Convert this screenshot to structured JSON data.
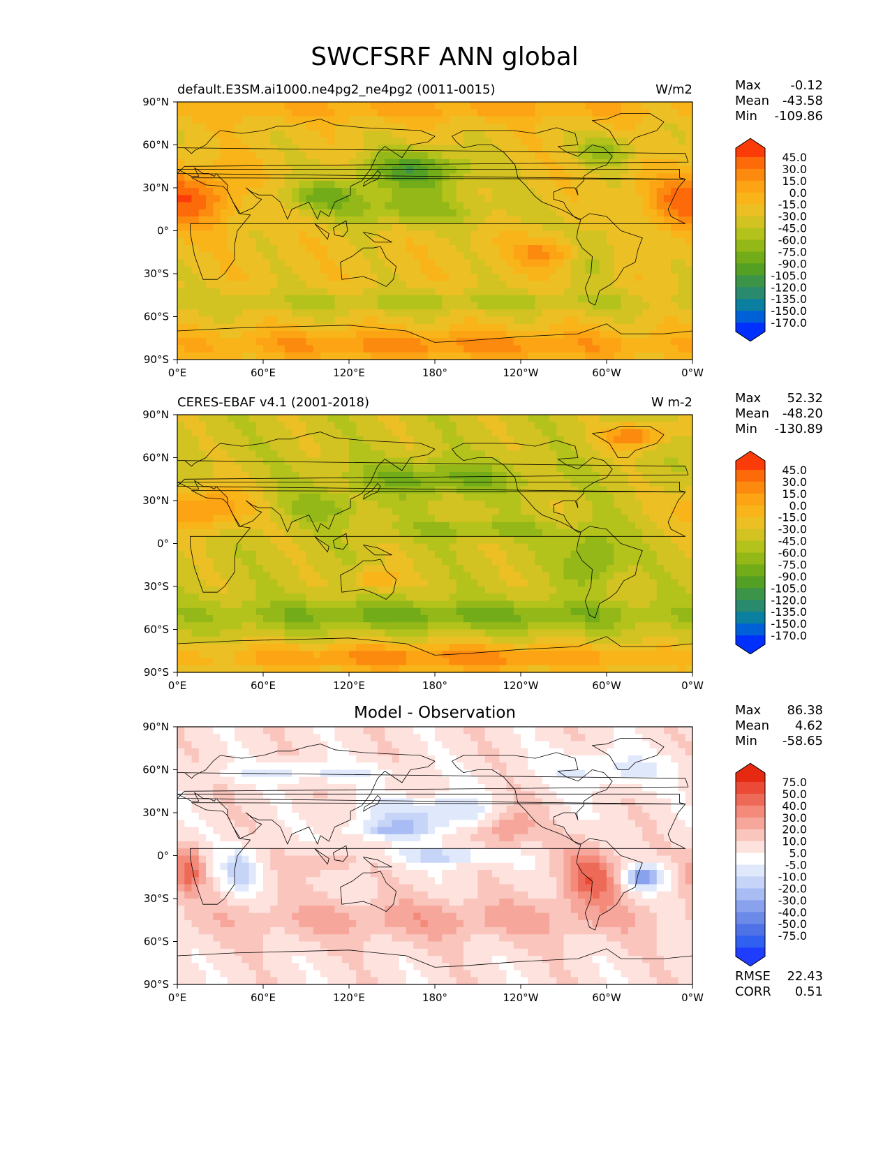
{
  "title": "SWCFSRF ANN global",
  "palettes": {
    "field": [
      "#0030ff",
      "#0060d8",
      "#0a7fa0",
      "#2a8a6e",
      "#3c9448",
      "#54a024",
      "#72ac18",
      "#94b818",
      "#b4c21c",
      "#d2c222",
      "#ecc024",
      "#f8b418",
      "#fca414",
      "#fc8a0e",
      "#fc6a0a",
      "#fc3c08"
    ],
    "diff": [
      "#1f3dff",
      "#3060f0",
      "#4f73e6",
      "#6c8ae8",
      "#8aa2ee",
      "#a9bdf4",
      "#c6d4f8",
      "#e0e8fc",
      "#ffffff",
      "#fde2de",
      "#fac5bd",
      "#f6a69a",
      "#f38a7a",
      "#ee6a58",
      "#ea4a36",
      "#e62a12"
    ]
  },
  "chart_data": [
    {
      "type": "heatmap",
      "title": "default.E3SM.ai1000.ne4pg2_ne4pg2 (0011-0015)",
      "units": "W/m2",
      "stats": {
        "labels": [
          "Max",
          "Mean",
          "Min"
        ],
        "values": [
          "-0.12",
          "-43.58",
          "-109.86"
        ]
      },
      "colorbar": {
        "palette": "field",
        "ticks": [
          "45.0",
          "30.0",
          "15.0",
          "0.0",
          "-15.0",
          "-30.0",
          "-45.0",
          "-60.0",
          "-75.0",
          "-90.0",
          "-105.0",
          "-120.0",
          "-135.0",
          "-150.0",
          "-170.0"
        ]
      },
      "xticks": [
        "0°E",
        "60°E",
        "120°E",
        "180°",
        "120°W",
        "60°W",
        "0°W"
      ],
      "yticks": [
        "90°N",
        "60°N",
        "30°N",
        "0°",
        "30°S",
        "60°S",
        "90°S"
      ],
      "xlim": [
        0,
        360
      ],
      "ylim": [
        -90,
        90
      ],
      "base_level": 10,
      "features": [
        {
          "lon": 165,
          "lat": 42,
          "rx": 40,
          "ry": 14,
          "delta": -5
        },
        {
          "lon": 100,
          "lat": 25,
          "rx": 30,
          "ry": 10,
          "delta": -3
        },
        {
          "lon": 160,
          "lat": 15,
          "rx": 60,
          "ry": 12,
          "delta": -3
        },
        {
          "lon": 180,
          "lat": -50,
          "rx": 180,
          "ry": 8,
          "delta": -2
        },
        {
          "lon": 350,
          "lat": 20,
          "rx": 25,
          "ry": 20,
          "delta": 3
        },
        {
          "lon": 20,
          "lat": 25,
          "rx": 25,
          "ry": 20,
          "delta": 3
        },
        {
          "lon": 260,
          "lat": -15,
          "rx": 25,
          "ry": 10,
          "delta": 3
        },
        {
          "lon": 180,
          "lat": 85,
          "rx": 180,
          "ry": 8,
          "delta": 2
        },
        {
          "lon": 180,
          "lat": -80,
          "rx": 180,
          "ry": 10,
          "delta": 3
        },
        {
          "lon": 300,
          "lat": 55,
          "rx": 20,
          "ry": 10,
          "delta": -3
        },
        {
          "lon": 290,
          "lat": -15,
          "rx": 20,
          "ry": 20,
          "delta": -2
        }
      ]
    },
    {
      "type": "heatmap",
      "title": "CERES-EBAF v4.1 (2001-2018)",
      "units": "W m-2",
      "stats": {
        "labels": [
          "Max",
          "Mean",
          "Min"
        ],
        "values": [
          "52.32",
          "-48.20",
          "-130.89"
        ]
      },
      "colorbar": {
        "palette": "field",
        "ticks": [
          "45.0",
          "30.0",
          "15.0",
          "0.0",
          "-15.0",
          "-30.0",
          "-45.0",
          "-60.0",
          "-75.0",
          "-90.0",
          "-105.0",
          "-120.0",
          "-135.0",
          "-150.0",
          "-170.0"
        ]
      },
      "xticks": [
        "0°E",
        "60°E",
        "120°E",
        "180°",
        "120°W",
        "60°W",
        "0°W"
      ],
      "yticks": [
        "90°N",
        "60°N",
        "30°N",
        "0°",
        "30°S",
        "60°S",
        "90°S"
      ],
      "xlim": [
        0,
        360
      ],
      "ylim": [
        -90,
        90
      ],
      "base_level": 9,
      "features": [
        {
          "lon": 180,
          "lat": 45,
          "rx": 60,
          "ry": 12,
          "delta": -3
        },
        {
          "lon": 180,
          "lat": -50,
          "rx": 180,
          "ry": 10,
          "delta": -3
        },
        {
          "lon": 290,
          "lat": -10,
          "rx": 20,
          "ry": 20,
          "delta": -3
        },
        {
          "lon": 100,
          "lat": 25,
          "rx": 30,
          "ry": 10,
          "delta": -2
        },
        {
          "lon": 320,
          "lat": 75,
          "rx": 20,
          "ry": 8,
          "delta": 5
        },
        {
          "lon": 20,
          "lat": 25,
          "rx": 30,
          "ry": 15,
          "delta": 4
        },
        {
          "lon": 180,
          "lat": -80,
          "rx": 180,
          "ry": 10,
          "delta": 4
        },
        {
          "lon": 140,
          "lat": -25,
          "rx": 15,
          "ry": 8,
          "delta": 3
        },
        {
          "lon": 210,
          "lat": 10,
          "rx": 60,
          "ry": 6,
          "delta": -2
        }
      ]
    },
    {
      "type": "heatmap",
      "title": "Model - Observation",
      "units": "",
      "stats": {
        "labels": [
          "Max",
          "Mean",
          "Min"
        ],
        "values": [
          "86.38",
          "4.62",
          "-58.65"
        ]
      },
      "extra_stats": {
        "labels": [
          "RMSE",
          "CORR"
        ],
        "values": [
          "22.43",
          "0.51"
        ]
      },
      "colorbar": {
        "palette": "diff",
        "ticks": [
          "75.0",
          "50.0",
          "40.0",
          "30.0",
          "20.0",
          "10.0",
          "5.0",
          "-5.0",
          "-10.0",
          "-20.0",
          "-30.0",
          "-40.0",
          "-50.0",
          "-75.0"
        ]
      },
      "xticks": [
        "0°E",
        "60°E",
        "120°E",
        "180°",
        "120°W",
        "60°W",
        "0°W"
      ],
      "yticks": [
        "90°N",
        "60°N",
        "30°N",
        "0°",
        "30°S",
        "60°S",
        "90°S"
      ],
      "xlim": [
        0,
        360
      ],
      "ylim": [
        -90,
        90
      ],
      "base_level": 9,
      "features": [
        {
          "lon": 180,
          "lat": 30,
          "rx": 45,
          "ry": 12,
          "delta": -3
        },
        {
          "lon": 150,
          "lat": 18,
          "rx": 30,
          "ry": 6,
          "delta": -3
        },
        {
          "lon": 190,
          "lat": 0,
          "rx": 40,
          "ry": 6,
          "delta": -3
        },
        {
          "lon": 45,
          "lat": -10,
          "rx": 12,
          "ry": 15,
          "delta": -3
        },
        {
          "lon": 325,
          "lat": -15,
          "rx": 15,
          "ry": 8,
          "delta": -5
        },
        {
          "lon": 290,
          "lat": -15,
          "rx": 22,
          "ry": 20,
          "delta": 4
        },
        {
          "lon": 230,
          "lat": 20,
          "rx": 20,
          "ry": 15,
          "delta": 3
        },
        {
          "lon": 8,
          "lat": -10,
          "rx": 10,
          "ry": 15,
          "delta": 4
        },
        {
          "lon": 100,
          "lat": -5,
          "rx": 20,
          "ry": 8,
          "delta": 2
        },
        {
          "lon": 180,
          "lat": -45,
          "rx": 180,
          "ry": 15,
          "delta": 2
        },
        {
          "lon": 300,
          "lat": 60,
          "rx": 40,
          "ry": 12,
          "delta": -2
        },
        {
          "lon": 90,
          "lat": 58,
          "rx": 60,
          "ry": 6,
          "delta": -2
        }
      ]
    }
  ]
}
